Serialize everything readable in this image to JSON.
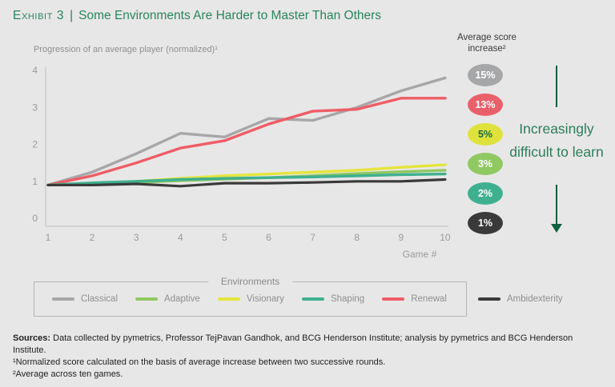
{
  "header": {
    "exhibit_label": "Exhibit 3",
    "separator": "|",
    "title": "Some Environments Are Harder to Master Than Others"
  },
  "chart": {
    "subtitle": "Progression of an average player (normalized)¹",
    "xaxis_label": "Game #"
  },
  "score_panel": {
    "heading": "Average score increase²",
    "badges": [
      {
        "label": "15%",
        "color": "#a6a7a8",
        "text_color": "#ffffff"
      },
      {
        "label": "13%",
        "color": "#e9606b",
        "text_color": "#ffffff"
      },
      {
        "label": "5%",
        "color": "#dfe23d",
        "text_color": "#1d6b42"
      },
      {
        "label": "3%",
        "color": "#90c862",
        "text_color": "#ffffff"
      },
      {
        "label": "2%",
        "color": "#3fb08f",
        "text_color": "#ffffff"
      },
      {
        "label": "1%",
        "color": "#3a3a3a",
        "text_color": "#ffffff"
      }
    ],
    "difficulty_note": "Increasingly difficult to learn",
    "arrow_color": "#0f5f40"
  },
  "legend": {
    "title": "Environments",
    "items": [
      {
        "label": "Classical"
      },
      {
        "label": "Adaptive"
      },
      {
        "label": "Visionary"
      },
      {
        "label": "Shaping"
      },
      {
        "label": "Renewal"
      }
    ],
    "outside_item": {
      "label": "Ambidexterity"
    }
  },
  "footer": {
    "sources_label": "Sources:",
    "sources_text": " Data collected by pymetrics, Professor TejPavan Gandhok, and BCG Henderson Institute; analysis by pymetrics and BCG Henderson Institute.",
    "footnote1": "¹Normalized score calculated on the basis of average increase between two successive rounds.",
    "footnote2": "²Average across ten games."
  },
  "chart_data": {
    "type": "line",
    "title": "Progression of an average player (normalized)",
    "xlabel": "Game #",
    "ylabel": "",
    "x": [
      1,
      2,
      3,
      4,
      5,
      6,
      7,
      8,
      9,
      10
    ],
    "ylim": [
      0,
      4
    ],
    "yticks": [
      0,
      1,
      2,
      3,
      4
    ],
    "grid": false,
    "legend_position": "bottom",
    "series": [
      {
        "name": "Classical",
        "color": "#a7a7a9",
        "avg_score_increase": "15%",
        "values": [
          0.9,
          1.25,
          1.75,
          2.3,
          2.2,
          2.7,
          2.65,
          3.0,
          3.45,
          3.8
        ]
      },
      {
        "name": "Adaptive",
        "color": "#90c862",
        "avg_score_increase": "3%",
        "values": [
          0.9,
          0.93,
          0.97,
          1.02,
          1.06,
          1.1,
          1.15,
          1.21,
          1.26,
          1.3
        ]
      },
      {
        "name": "Visionary",
        "color": "#e5e53e",
        "avg_score_increase": "5%",
        "values": [
          0.9,
          0.95,
          1.0,
          1.08,
          1.15,
          1.2,
          1.25,
          1.3,
          1.38,
          1.45
        ]
      },
      {
        "name": "Shaping",
        "color": "#3fb08f",
        "avg_score_increase": "2%",
        "values": [
          0.9,
          0.96,
          1.0,
          1.05,
          1.08,
          1.1,
          1.12,
          1.15,
          1.18,
          1.2
        ]
      },
      {
        "name": "Renewal",
        "color": "#ef5d66",
        "avg_score_increase": "13%",
        "values": [
          0.9,
          1.15,
          1.5,
          1.9,
          2.1,
          2.55,
          2.9,
          2.95,
          3.25,
          3.25
        ]
      },
      {
        "name": "Ambidexterity",
        "color": "#3a3a3a",
        "avg_score_increase": "1%",
        "values": [
          0.9,
          0.9,
          0.93,
          0.87,
          0.95,
          0.95,
          0.97,
          1.0,
          1.0,
          1.05
        ]
      }
    ]
  }
}
